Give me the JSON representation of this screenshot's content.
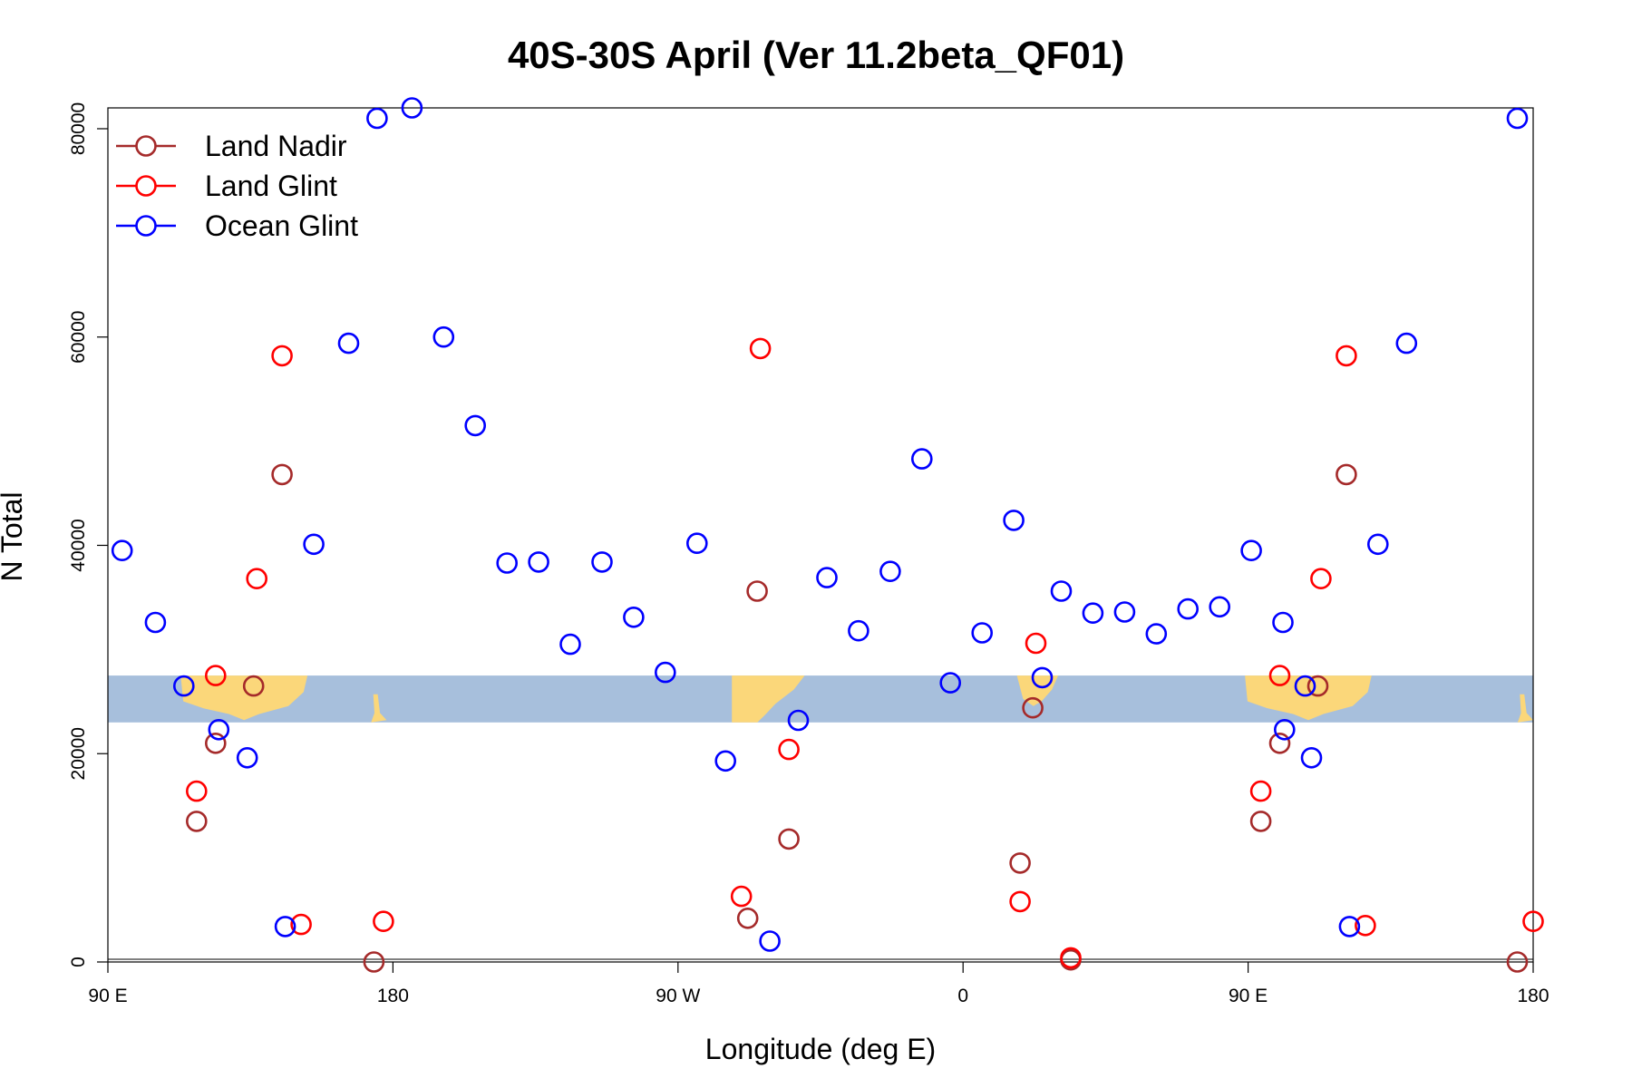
{
  "chart_data": {
    "type": "scatter",
    "title": "40S-30S April (Ver 11.2beta_QF01)",
    "xlabel": "Longitude (deg E)",
    "ylabel": "N Total",
    "xlim": [
      90,
      540
    ],
    "ylim": [
      0,
      82000
    ],
    "x_ticks": [
      {
        "value": 90,
        "label": "90 E"
      },
      {
        "value": 180,
        "label": "180"
      },
      {
        "value": 270,
        "label": "90 W"
      },
      {
        "value": 360,
        "label": "0"
      },
      {
        "value": 450,
        "label": "90 E"
      },
      {
        "value": 540,
        "label": "180"
      }
    ],
    "y_ticks": [
      {
        "value": 0,
        "label": "0"
      },
      {
        "value": 20000,
        "label": "20000"
      },
      {
        "value": 40000,
        "label": "40000"
      },
      {
        "value": 60000,
        "label": "60000"
      },
      {
        "value": 80000,
        "label": "80000"
      }
    ],
    "grid": false,
    "legend_position": "top-left",
    "map_band": {
      "y_range": [
        23000,
        27500
      ],
      "ocean_color": "#a7bfdc",
      "land_color": "#fbd77a"
    },
    "series": [
      {
        "name": "Land Nadir",
        "color": "#a52a2a",
        "points": [
          [
            124,
            21000
          ],
          [
            118,
            13500
          ],
          [
            136,
            26500
          ],
          [
            145,
            46800
          ],
          [
            174,
            0
          ],
          [
            295,
            35600
          ],
          [
            292,
            4200
          ],
          [
            305,
            11800
          ],
          [
            378,
            9500
          ],
          [
            382,
            24400
          ],
          [
            394,
            200
          ],
          [
            460,
            21000
          ],
          [
            454,
            13500
          ],
          [
            472,
            26500
          ],
          [
            481,
            46800
          ],
          [
            535,
            0
          ]
        ]
      },
      {
        "name": "Land Glint",
        "color": "#ff0000",
        "points": [
          [
            118,
            16400
          ],
          [
            124,
            27500
          ],
          [
            137,
            36800
          ],
          [
            145,
            58200
          ],
          [
            151,
            3600
          ],
          [
            177,
            3900
          ],
          [
            296,
            58900
          ],
          [
            305,
            20400
          ],
          [
            290,
            6300
          ],
          [
            378,
            5800
          ],
          [
            383,
            30600
          ],
          [
            394,
            400
          ],
          [
            460,
            27500
          ],
          [
            454,
            16400
          ],
          [
            473,
            36800
          ],
          [
            481,
            58200
          ],
          [
            487,
            3500
          ],
          [
            540,
            3900
          ]
        ]
      },
      {
        "name": "Ocean Glint",
        "color": "#0000ff",
        "points": [
          [
            94.5,
            39500
          ],
          [
            105,
            32600
          ],
          [
            114,
            26500
          ],
          [
            125,
            22300
          ],
          [
            134,
            19600
          ],
          [
            146,
            3400
          ],
          [
            155,
            40100
          ],
          [
            166,
            59400
          ],
          [
            175,
            81000
          ],
          [
            186,
            82000
          ],
          [
            196,
            60000
          ],
          [
            206,
            51500
          ],
          [
            216,
            38300
          ],
          [
            226,
            38400
          ],
          [
            236,
            30500
          ],
          [
            246,
            38400
          ],
          [
            256,
            33100
          ],
          [
            266,
            27800
          ],
          [
            276,
            40200
          ],
          [
            285,
            19300
          ],
          [
            299,
            2000
          ],
          [
            308,
            23200
          ],
          [
            317,
            36900
          ],
          [
            327,
            31800
          ],
          [
            337,
            37500
          ],
          [
            347,
            48300
          ],
          [
            356,
            26800
          ],
          [
            366,
            31600
          ],
          [
            376,
            42400
          ],
          [
            385,
            27300
          ],
          [
            391,
            35600
          ],
          [
            401,
            33500
          ],
          [
            411,
            33600
          ],
          [
            421,
            31500
          ],
          [
            431,
            33900
          ],
          [
            441,
            34100
          ],
          [
            451,
            39500
          ],
          [
            461,
            32600
          ],
          [
            468,
            26500
          ],
          [
            461.5,
            22300
          ],
          [
            470,
            19600
          ],
          [
            482,
            3400
          ],
          [
            491,
            40100
          ],
          [
            500,
            59400
          ],
          [
            535,
            81000
          ]
        ]
      }
    ]
  }
}
